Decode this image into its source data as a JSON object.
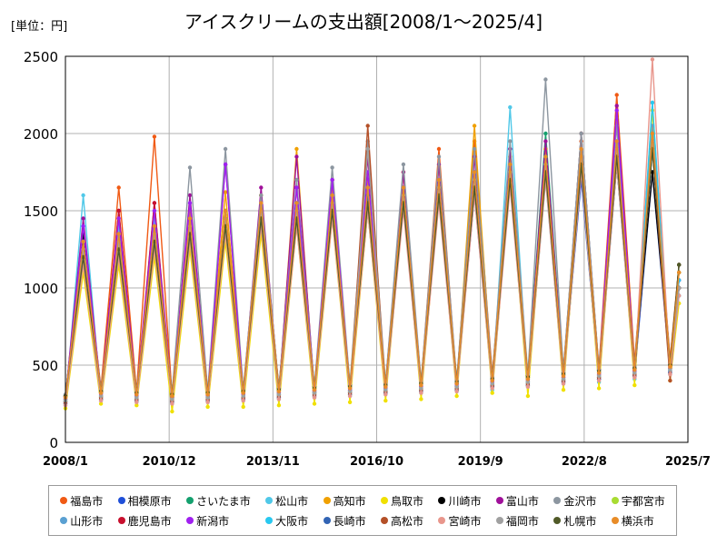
{
  "chart_data": {
    "type": "line",
    "title": "アイスクリームの支出額[2008/1～2025/4]",
    "unit_label": "[単位：円]",
    "ylim": [
      0,
      2500
    ],
    "yticks": [
      0,
      500,
      1000,
      1500,
      2000,
      2500
    ],
    "xlim": [
      "2008/1",
      "2025/7"
    ],
    "xticks": [
      "2008/1",
      "2010/12",
      "2013/11",
      "2016/10",
      "2019/9",
      "2022/8",
      "2025/7"
    ],
    "grid": true,
    "legend_position": "bottom",
    "x": [
      "2008/1",
      "2008/7",
      "2009/1",
      "2009/7",
      "2010/1",
      "2010/7",
      "2011/1",
      "2011/7",
      "2012/1",
      "2012/7",
      "2013/1",
      "2013/7",
      "2014/1",
      "2014/7",
      "2015/1",
      "2015/7",
      "2016/1",
      "2016/7",
      "2017/1",
      "2017/7",
      "2018/1",
      "2018/7",
      "2019/1",
      "2019/7",
      "2020/1",
      "2020/7",
      "2021/1",
      "2021/7",
      "2022/1",
      "2022/7",
      "2023/1",
      "2023/7",
      "2024/1",
      "2024/7",
      "2025/1",
      "2025/4"
    ],
    "series": [
      {
        "name": "福島市",
        "color": "#f05a14",
        "values": [
          300,
          1350,
          350,
          1650,
          330,
          1980,
          300,
          1500,
          300,
          1450,
          320,
          1600,
          350,
          1650,
          330,
          1700,
          360,
          1600,
          380,
          1750,
          380,
          1900,
          380,
          1950,
          440,
          1800,
          420,
          1900,
          470,
          1950,
          480,
          2250,
          520,
          2000,
          540,
          1150
        ]
      },
      {
        "name": "相模原市",
        "color": "#1f4fd8",
        "values": [
          260,
          1200,
          300,
          1250,
          300,
          1300,
          280,
          1350,
          290,
          1400,
          300,
          1500,
          310,
          1500,
          320,
          1500,
          330,
          1550,
          340,
          1550,
          350,
          1650,
          360,
          1600,
          380,
          1700,
          390,
          1750,
          400,
          1700,
          410,
          1800,
          430,
          1750,
          460,
          1000
        ]
      },
      {
        "name": "さいたま市",
        "color": "#14a06e",
        "values": [
          280,
          1300,
          320,
          1350,
          310,
          1400,
          300,
          1450,
          300,
          1500,
          310,
          1550,
          320,
          1550,
          330,
          1600,
          340,
          1650,
          350,
          1650,
          360,
          1700,
          380,
          1750,
          400,
          1800,
          420,
          2000,
          440,
          2000,
          450,
          2100,
          470,
          1900,
          500,
          1100
        ]
      },
      {
        "name": "松山市",
        "color": "#50c8e8",
        "values": [
          240,
          1600,
          270,
          1400,
          260,
          1450,
          250,
          1400,
          260,
          1350,
          270,
          1400,
          280,
          1450,
          290,
          1500,
          300,
          1500,
          310,
          1550,
          320,
          1600,
          330,
          1650,
          340,
          2170,
          360,
          1700,
          380,
          1750,
          390,
          1800,
          410,
          2200,
          440,
          950
        ]
      },
      {
        "name": "高知市",
        "color": "#f0a000",
        "values": [
          270,
          1250,
          300,
          1300,
          290,
          1350,
          280,
          1500,
          300,
          1620,
          300,
          1600,
          310,
          1900,
          320,
          1650,
          330,
          1700,
          340,
          1750,
          350,
          1800,
          360,
          2050,
          380,
          1850,
          400,
          1900,
          420,
          2000,
          440,
          2100,
          460,
          2000,
          480,
          1100
        ]
      },
      {
        "name": "鳥取市",
        "color": "#f0e000",
        "values": [
          220,
          1100,
          250,
          1150,
          240,
          1200,
          200,
          1250,
          230,
          1300,
          230,
          1350,
          240,
          1400,
          250,
          1450,
          260,
          1500,
          270,
          1550,
          280,
          1600,
          300,
          1650,
          320,
          1700,
          300,
          1750,
          340,
          1800,
          350,
          1850,
          370,
          2150,
          400,
          900
        ]
      },
      {
        "name": "川崎市",
        "color": "#000000",
        "values": [
          300,
          1350,
          330,
          1300,
          320,
          1350,
          320,
          1400,
          330,
          1450,
          340,
          1500,
          350,
          1500,
          360,
          1550,
          370,
          1600,
          380,
          1600,
          390,
          1650,
          400,
          1700,
          420,
          1750,
          430,
          1750,
          450,
          1750,
          470,
          1800,
          480,
          1750,
          500,
          1150
        ]
      },
      {
        "name": "富山市",
        "color": "#a0109a",
        "values": [
          290,
          1450,
          320,
          1500,
          310,
          1550,
          300,
          1600,
          310,
          1800,
          320,
          1650,
          330,
          1850,
          340,
          1700,
          350,
          1850,
          360,
          1750,
          370,
          1800,
          380,
          1850,
          400,
          1900,
          410,
          1950,
          430,
          2000,
          450,
          2180,
          470,
          1950,
          490,
          1050
        ]
      },
      {
        "name": "金沢市",
        "color": "#8c96a0",
        "values": [
          310,
          1300,
          340,
          1350,
          330,
          1400,
          320,
          1780,
          330,
          1900,
          340,
          1600,
          350,
          1700,
          360,
          1780,
          370,
          1950,
          380,
          1800,
          390,
          1850,
          400,
          1900,
          420,
          1950,
          440,
          2350,
          460,
          2000,
          470,
          2050,
          490,
          2050,
          510,
          1050
        ]
      },
      {
        "name": "宇都宮市",
        "color": "#a8dc32",
        "values": [
          270,
          1250,
          300,
          1300,
          290,
          1350,
          280,
          1400,
          290,
          1450,
          300,
          1500,
          310,
          1500,
          320,
          1550,
          330,
          1600,
          340,
          1600,
          350,
          1650,
          360,
          1700,
          380,
          1750,
          390,
          1800,
          410,
          1850,
          430,
          1900,
          450,
          1950,
          470,
          1000
        ]
      },
      {
        "name": "山形市",
        "color": "#5aa0d2",
        "values": [
          260,
          1200,
          290,
          1250,
          280,
          1300,
          270,
          1350,
          280,
          1400,
          290,
          1450,
          300,
          1450,
          310,
          1500,
          320,
          1550,
          330,
          1550,
          340,
          1600,
          350,
          1650,
          370,
          1700,
          380,
          1750,
          400,
          1800,
          420,
          1850,
          440,
          1900,
          460,
          950
        ]
      },
      {
        "name": "鹿児島市",
        "color": "#c8102e",
        "values": [
          250,
          1300,
          280,
          1500,
          270,
          1550,
          260,
          1450,
          270,
          1400,
          280,
          1500,
          290,
          1500,
          300,
          1550,
          310,
          1600,
          320,
          1600,
          330,
          1650,
          340,
          1700,
          360,
          1750,
          370,
          1800,
          390,
          1850,
          410,
          1900,
          430,
          1950,
          450,
          1000
        ]
      },
      {
        "name": "新潟市",
        "color": "#a020f0",
        "values": [
          280,
          1400,
          310,
          1450,
          300,
          1500,
          290,
          1550,
          300,
          1800,
          310,
          1550,
          320,
          1650,
          330,
          1700,
          340,
          1750,
          350,
          1650,
          360,
          1700,
          370,
          1750,
          390,
          1800,
          400,
          1850,
          420,
          1900,
          440,
          2150,
          460,
          1950,
          480,
          1050
        ]
      },
      {
        "name": "大阪市",
        "color": "#28c8f0",
        "values": [
          270,
          1300,
          300,
          1350,
          290,
          1400,
          280,
          1450,
          290,
          1500,
          300,
          1550,
          310,
          1550,
          320,
          1600,
          330,
          1650,
          340,
          1650,
          350,
          1700,
          360,
          1750,
          380,
          1800,
          390,
          1850,
          410,
          1900,
          430,
          1950,
          450,
          2200,
          470,
          1050
        ]
      },
      {
        "name": "長崎市",
        "color": "#3264b4",
        "values": [
          250,
          1250,
          280,
          1300,
          270,
          1350,
          260,
          1400,
          270,
          1450,
          280,
          1500,
          290,
          1500,
          300,
          1550,
          310,
          1600,
          320,
          1600,
          330,
          1650,
          340,
          1700,
          360,
          1750,
          370,
          1800,
          390,
          1850,
          410,
          1900,
          430,
          1950,
          450,
          1000
        ]
      },
      {
        "name": "高松市",
        "color": "#b45028",
        "values": [
          260,
          1200,
          290,
          1250,
          280,
          1300,
          270,
          1350,
          280,
          1400,
          290,
          1450,
          300,
          1450,
          310,
          1500,
          320,
          2050,
          330,
          1550,
          340,
          1600,
          350,
          1650,
          370,
          1700,
          380,
          1750,
          400,
          1800,
          420,
          1850,
          440,
          1900,
          400,
          1000
        ]
      },
      {
        "name": "宮崎市",
        "color": "#e8968c",
        "values": [
          240,
          1150,
          270,
          1200,
          260,
          1250,
          250,
          1300,
          260,
          1350,
          270,
          1400,
          280,
          1400,
          290,
          1450,
          300,
          1500,
          310,
          1500,
          320,
          1550,
          330,
          1600,
          350,
          1650,
          360,
          1700,
          380,
          1750,
          400,
          1800,
          420,
          2480,
          440,
          950
        ]
      },
      {
        "name": "福岡市",
        "color": "#a0a0a0",
        "values": [
          270,
          1250,
          300,
          1300,
          290,
          1350,
          280,
          1400,
          290,
          1450,
          300,
          1500,
          310,
          1500,
          320,
          1550,
          330,
          1900,
          340,
          1600,
          350,
          1650,
          360,
          1700,
          380,
          1750,
          390,
          1800,
          410,
          1850,
          430,
          1900,
          450,
          1950,
          470,
          1000
        ]
      },
      {
        "name": "札幌市",
        "color": "#505a28",
        "values": [
          300,
          1200,
          330,
          1250,
          320,
          1300,
          310,
          1350,
          320,
          1400,
          330,
          1450,
          340,
          1450,
          350,
          1500,
          360,
          1550,
          370,
          1550,
          380,
          1600,
          390,
          1650,
          410,
          1700,
          420,
          1750,
          440,
          1800,
          460,
          1850,
          480,
          1900,
          500,
          1150
        ]
      },
      {
        "name": "横浜市",
        "color": "#e88c28",
        "values": [
          290,
          1300,
          320,
          1350,
          310,
          1400,
          300,
          1450,
          310,
          1500,
          320,
          1550,
          330,
          1550,
          340,
          1600,
          350,
          1650,
          360,
          1650,
          370,
          1700,
          380,
          1750,
          400,
          1800,
          410,
          1850,
          430,
          1900,
          450,
          1950,
          470,
          2000,
          490,
          1100
        ]
      }
    ]
  }
}
